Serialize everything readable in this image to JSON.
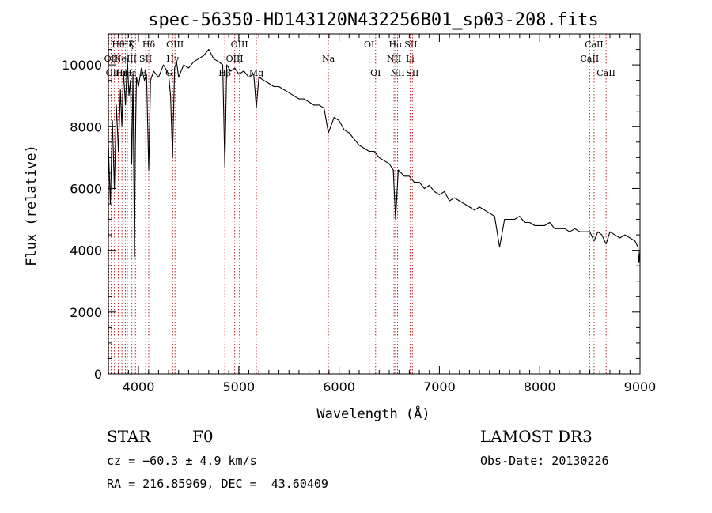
{
  "chart_data": {
    "type": "line",
    "title": "spec-56350-HD143120N432256B01_sp03-208.fits",
    "xlabel": "Wavelength (Å)",
    "ylabel": "Flux (relative)",
    "xlim": [
      3700,
      9000
    ],
    "ylim": [
      0,
      11000
    ],
    "xticks": [
      4000,
      5000,
      6000,
      7000,
      8000,
      9000
    ],
    "yticks": [
      0,
      2000,
      4000,
      6000,
      8000,
      10000
    ],
    "line_color": "#000000",
    "marker_color": "#b22222",
    "series": [
      {
        "name": "flux",
        "x": [
          3700,
          3720,
          3740,
          3760,
          3780,
          3800,
          3820,
          3835,
          3850,
          3870,
          3889,
          3905,
          3920,
          3933,
          3945,
          3960,
          3968,
          3980,
          4000,
          4030,
          4060,
          4080,
          4102,
          4120,
          4150,
          4200,
          4250,
          4300,
          4320,
          4340,
          4360,
          4380,
          4400,
          4450,
          4500,
          4550,
          4600,
          4650,
          4700,
          4750,
          4800,
          4840,
          4861,
          4880,
          4920,
          4960,
          5000,
          5050,
          5100,
          5150,
          5175,
          5200,
          5250,
          5300,
          5350,
          5400,
          5450,
          5500,
          5550,
          5600,
          5650,
          5700,
          5750,
          5800,
          5850,
          5893,
          5950,
          6000,
          6050,
          6100,
          6150,
          6200,
          6250,
          6300,
          6350,
          6400,
          6450,
          6500,
          6540,
          6563,
          6590,
          6620,
          6650,
          6700,
          6750,
          6800,
          6850,
          6900,
          6950,
          7000,
          7050,
          7100,
          7150,
          7200,
          7250,
          7300,
          7350,
          7400,
          7450,
          7500,
          7550,
          7600,
          7650,
          7700,
          7750,
          7800,
          7850,
          7900,
          7950,
          8000,
          8050,
          8100,
          8150,
          8200,
          8250,
          8300,
          8350,
          8400,
          8450,
          8500,
          8542,
          8580,
          8620,
          8662,
          8700,
          8750,
          8800,
          8850,
          8900,
          8950,
          8980,
          8990,
          9000
        ],
        "y": [
          7400,
          5500,
          8200,
          6000,
          8700,
          7200,
          9200,
          8000,
          9800,
          8700,
          10200,
          9000,
          9500,
          6800,
          9700,
          3800,
          7300,
          9600,
          9300,
          9900,
          9500,
          9700,
          6600,
          9500,
          9800,
          9600,
          10000,
          9700,
          9000,
          7000,
          9900,
          10100,
          9600,
          10000,
          9900,
          10100,
          10200,
          10300,
          10500,
          10200,
          10100,
          10000,
          6700,
          10000,
          9800,
          9900,
          9700,
          9800,
          9600,
          9700,
          8600,
          9600,
          9500,
          9400,
          9300,
          9300,
          9200,
          9100,
          9000,
          8900,
          8900,
          8800,
          8700,
          8700,
          8600,
          7800,
          8300,
          8200,
          7900,
          7800,
          7600,
          7400,
          7300,
          7200,
          7200,
          7000,
          6900,
          6800,
          6600,
          5000,
          6600,
          6500,
          6400,
          6400,
          6200,
          6200,
          6000,
          6100,
          5900,
          5800,
          5900,
          5600,
          5700,
          5600,
          5500,
          5400,
          5300,
          5400,
          5300,
          5200,
          5100,
          4100,
          5000,
          5000,
          5000,
          5100,
          4900,
          4900,
          4800,
          4800,
          4800,
          4900,
          4700,
          4700,
          4700,
          4600,
          4700,
          4600,
          4600,
          4600,
          4300,
          4600,
          4500,
          4200,
          4600,
          4500,
          4400,
          4500,
          4400,
          4300,
          4100,
          3600,
          4000
        ]
      }
    ],
    "lines": [
      {
        "wl": 3704,
        "row": 0,
        "label": ""
      },
      {
        "wl": 3727,
        "row": 1,
        "label": "OII"
      },
      {
        "wl": 3760,
        "row": 2,
        "label": "OIII"
      },
      {
        "wl": 3798,
        "row": 0,
        "label": "Hθ"
      },
      {
        "wl": 3835,
        "row": 2,
        "label": "Hη"
      },
      {
        "wl": 3869,
        "row": 1,
        "label": "NeIII"
      },
      {
        "wl": 3889,
        "row": 0,
        "label": "Hζ"
      },
      {
        "wl": 3934,
        "row": 0,
        "label": "K"
      },
      {
        "wl": 3970,
        "row": 2,
        "label": "Hε H"
      },
      {
        "wl": 4072,
        "row": 1,
        "label": "SII"
      },
      {
        "wl": 4102,
        "row": 0,
        "label": "Hδ"
      },
      {
        "wl": 4304,
        "row": 2,
        "label": "G"
      },
      {
        "wl": 4341,
        "row": 1,
        "label": "Hγ"
      },
      {
        "wl": 4364,
        "row": 0,
        "label": "OIII"
      },
      {
        "wl": 4861,
        "row": 2,
        "label": "Hβ"
      },
      {
        "wl": 4959,
        "row": 1,
        "label": "OIII"
      },
      {
        "wl": 5007,
        "row": 0,
        "label": "OIII"
      },
      {
        "wl": 5175,
        "row": 2,
        "label": "Mg"
      },
      {
        "wl": 5893,
        "row": 1,
        "label": "Na"
      },
      {
        "wl": 6300,
        "row": 0,
        "label": "OI"
      },
      {
        "wl": 6364,
        "row": 2,
        "label": "OI"
      },
      {
        "wl": 6548,
        "row": 1,
        "label": "NII"
      },
      {
        "wl": 6563,
        "row": 0,
        "label": "Hα"
      },
      {
        "wl": 6583,
        "row": 2,
        "label": "NII"
      },
      {
        "wl": 6708,
        "row": 1,
        "label": "Li"
      },
      {
        "wl": 6716,
        "row": 0,
        "label": "SII"
      },
      {
        "wl": 6731,
        "row": 2,
        "label": "SII"
      },
      {
        "wl": 8498,
        "row": 1,
        "label": "CaII"
      },
      {
        "wl": 8542,
        "row": 0,
        "label": "CaII"
      },
      {
        "wl": 8662,
        "row": 2,
        "label": "CaII"
      }
    ]
  },
  "info": {
    "class_label": "STAR",
    "subclass": "F0",
    "survey": "LAMOST DR3",
    "cz": "cz = −60.3 ± 4.9 km/s",
    "obs_date": "Obs-Date: 20130226",
    "radec": "RA = 216.85969, DEC =  43.60409"
  }
}
